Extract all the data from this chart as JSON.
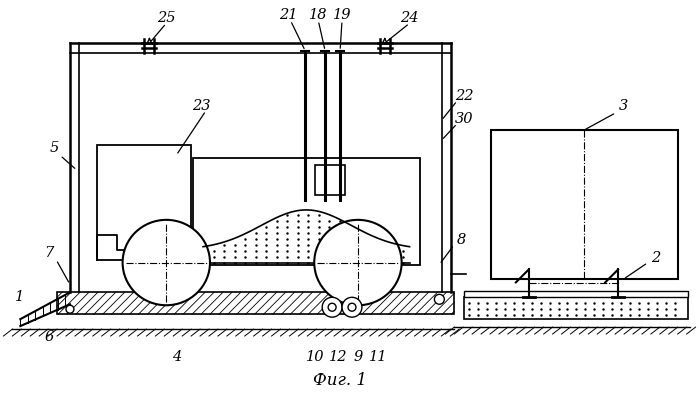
{
  "bg_color": "#ffffff",
  "line_color": "#000000",
  "fig_width": 6.99,
  "fig_height": 3.97,
  "dpi": 100
}
